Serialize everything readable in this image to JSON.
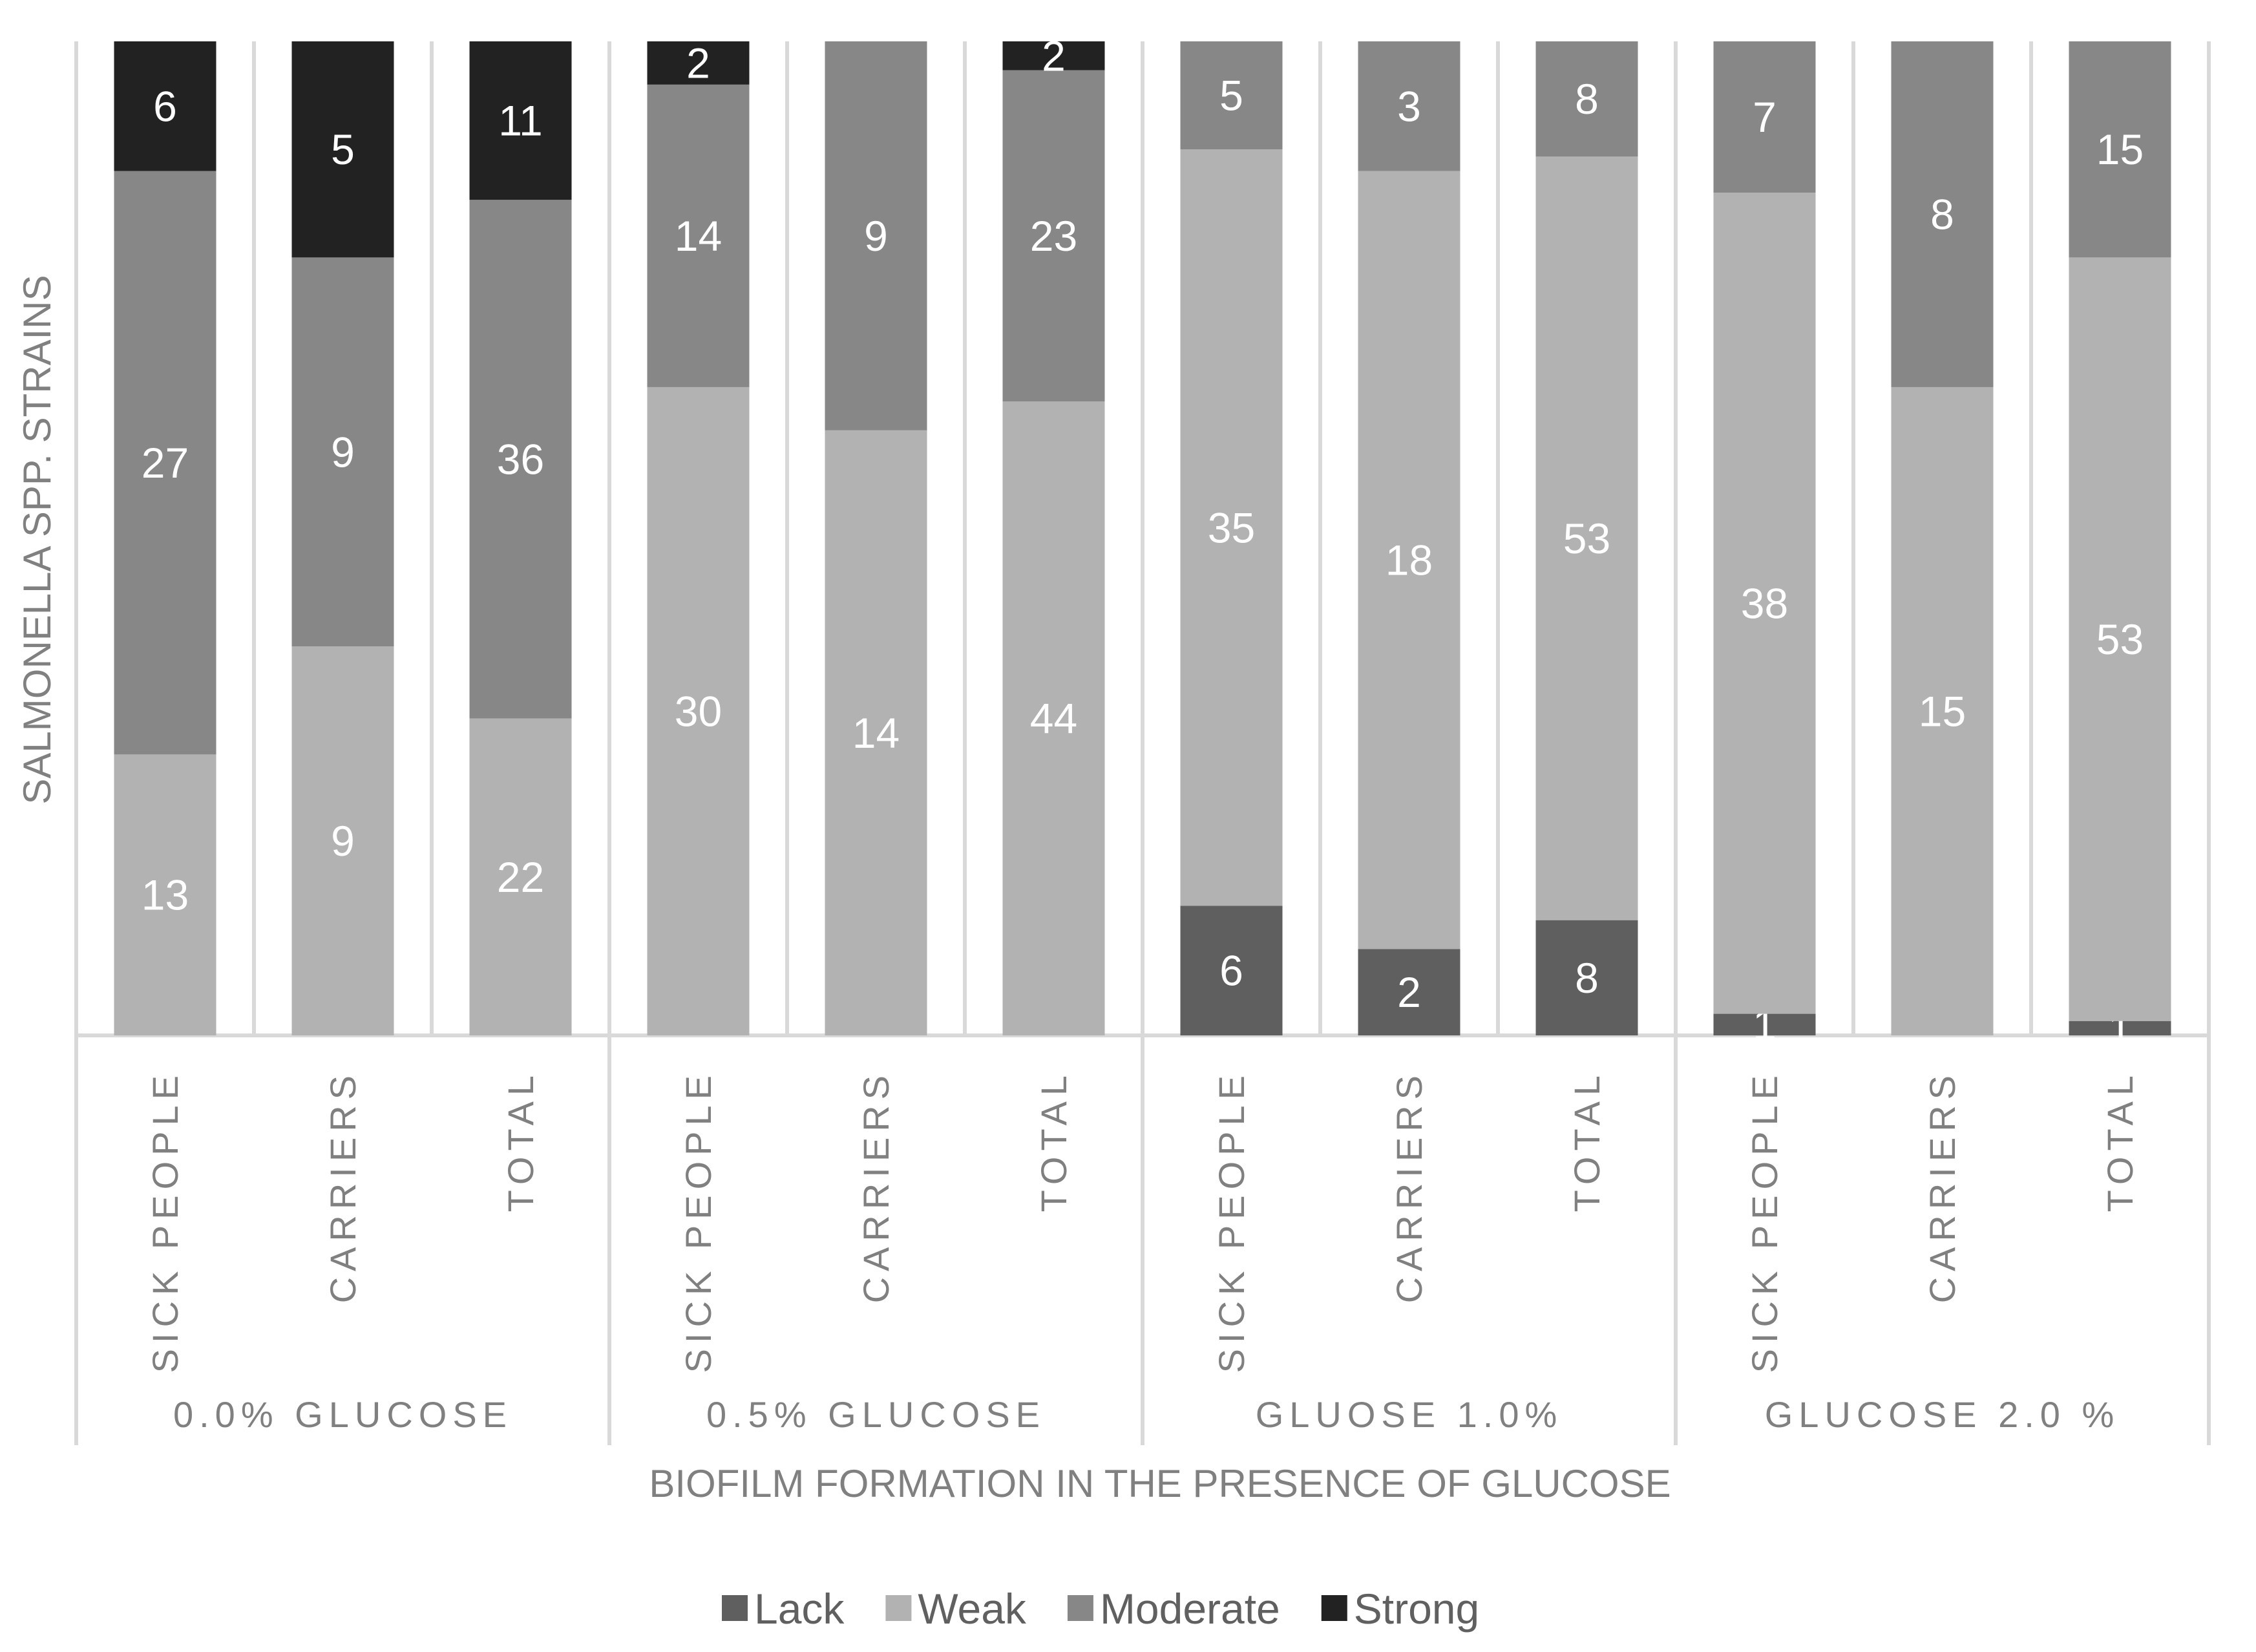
{
  "chart_data": {
    "type": "bar",
    "stacked": true,
    "categories": [
      "SICK PEOPLE",
      "CARRIERS",
      "TOTAL",
      "SICK PEOPLE",
      "CARRIERS",
      "TOTAL",
      "SICK PEOPLE",
      "CARRIERS",
      "TOTAL",
      "SICK PEOPLE",
      "CARRIERS",
      "TOTAL"
    ],
    "groups": [
      {
        "label": "0.0% GLUCOSE",
        "size": 3
      },
      {
        "label": "0.5% GLUCOSE",
        "size": 3
      },
      {
        "label": "GLUOSE 1.0%",
        "size": 3
      },
      {
        "label": "GLUCOSE 2.0 %",
        "size": 3
      }
    ],
    "series": [
      {
        "name": "Lack",
        "color": "#5f5f5f",
        "labelColor": "#ffffff",
        "values": [
          0,
          0,
          0,
          0,
          0,
          0,
          6,
          2,
          8,
          1,
          0,
          1
        ]
      },
      {
        "name": "Weak",
        "color": "#b2b2b2",
        "labelColor": "#ffffff",
        "values": [
          13,
          9,
          22,
          30,
          14,
          44,
          35,
          18,
          53,
          38,
          15,
          53
        ]
      },
      {
        "name": "Moderate",
        "color": "#878787",
        "labelColor": "#ffffff",
        "values": [
          27,
          9,
          36,
          14,
          9,
          23,
          5,
          3,
          8,
          7,
          8,
          15
        ]
      },
      {
        "name": "Strong",
        "color": "#222222",
        "labelColor": "#ffffff",
        "values": [
          6,
          5,
          11,
          2,
          0,
          2,
          0,
          0,
          0,
          0,
          0,
          0
        ]
      }
    ],
    "xlabel": "BIOFILM FORMATION IN THE PRESENCE OF GLUCOSE",
    "ylabel": "SALMONELLA SPP. STRAINS",
    "percent_stacked": true,
    "legend": "bottom",
    "grid": false
  }
}
